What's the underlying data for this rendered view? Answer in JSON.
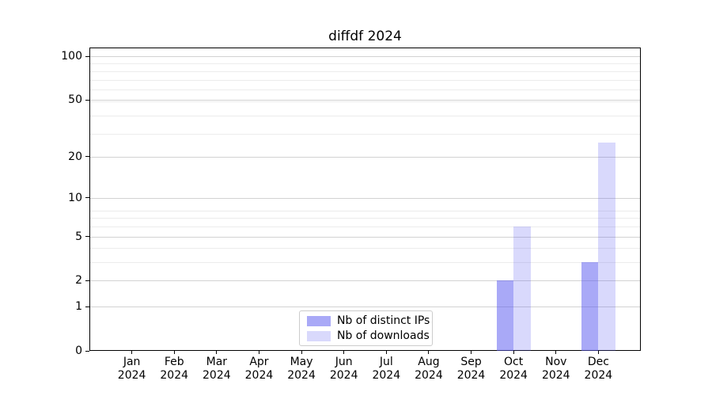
{
  "title": "diffdf 2024",
  "legend": {
    "items": [
      {
        "label": "Nb of distinct IPs",
        "color": "rgba(90,90,240,0.52)"
      },
      {
        "label": "Nb of downloads",
        "color": "rgba(90,90,240,0.23)"
      }
    ]
  },
  "axis": {
    "ytick_labels": [
      "0",
      "1",
      "2",
      "5",
      "10",
      "20",
      "50",
      "100"
    ],
    "month_labels": [
      "Jan",
      "Feb",
      "Mar",
      "Apr",
      "May",
      "Jun",
      "Jul",
      "Aug",
      "Sep",
      "Oct",
      "Nov",
      "Dec"
    ],
    "year_label": "2024"
  },
  "chart_data": {
    "type": "bar",
    "title": "diffdf 2024",
    "categories": [
      "Jan 2024",
      "Feb 2024",
      "Mar 2024",
      "Apr 2024",
      "May 2024",
      "Jun 2024",
      "Jul 2024",
      "Aug 2024",
      "Sep 2024",
      "Oct 2024",
      "Nov 2024",
      "Dec 2024"
    ],
    "series": [
      {
        "name": "Nb of distinct IPs",
        "color": "rgba(90,90,240,0.52)",
        "values": [
          0,
          0,
          0,
          0,
          0,
          0,
          0,
          0,
          0,
          2,
          0,
          3
        ]
      },
      {
        "name": "Nb of downloads",
        "color": "rgba(90,90,240,0.23)",
        "values": [
          0,
          0,
          0,
          0,
          0,
          0,
          0,
          0,
          0,
          6,
          0,
          25
        ]
      }
    ],
    "xlabel": "",
    "ylabel": "",
    "yscale": "log1p",
    "yticks": [
      0,
      1,
      2,
      5,
      10,
      20,
      50,
      100
    ],
    "minor_gridline_values": [
      2,
      3,
      4,
      5,
      6,
      7,
      8,
      29,
      39,
      49,
      59,
      69,
      79,
      89
    ],
    "ylim": [
      0,
      115
    ],
    "grid": true,
    "legend_position": "lower center inside"
  }
}
